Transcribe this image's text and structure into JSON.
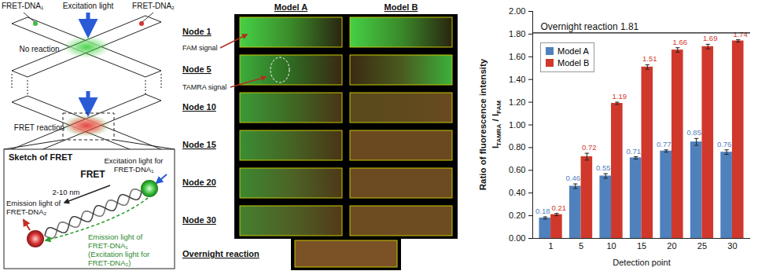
{
  "chart_data": {
    "type": "bar",
    "x_label": "Detection point",
    "y_label": [
      [
        {
          "text": "Ratio of fluorescence intensity"
        }
      ],
      [
        {
          "text": "I"
        },
        {
          "text": "TAMRA",
          "sub": true
        },
        {
          "text": " / "
        },
        {
          "text": "I"
        },
        {
          "text": "FAM",
          "sub": true
        }
      ]
    ],
    "categories": [
      "1",
      "5",
      "10",
      "15",
      "20",
      "25",
      "30"
    ],
    "series": [
      {
        "name": "Model A",
        "color": "#4f81bd",
        "values": [
          0.18,
          0.46,
          0.55,
          0.71,
          0.77,
          0.85,
          0.76
        ],
        "errors": [
          0.01,
          0.02,
          0.02,
          0.01,
          0.01,
          0.03,
          0.02
        ]
      },
      {
        "name": "Model B",
        "color": "#d0382c",
        "values": [
          0.21,
          0.72,
          1.19,
          1.51,
          1.66,
          1.69,
          1.74
        ],
        "errors": [
          0.01,
          0.03,
          0.01,
          0.02,
          0.02,
          0.02,
          0.01
        ]
      }
    ],
    "ylim": [
      0,
      2
    ],
    "yticks": [
      {
        "value": 0,
        "label": "0.00"
      },
      {
        "value": 0.2,
        "label": "0.20"
      },
      {
        "value": 0.4,
        "label": "0.40"
      },
      {
        "value": 0.6,
        "label": "0.60"
      },
      {
        "value": 0.8,
        "label": "0.80"
      },
      {
        "value": 1,
        "label": "1.00"
      },
      {
        "value": 1.2,
        "label": "1.20"
      },
      {
        "value": 1.4,
        "label": "1.40"
      },
      {
        "value": 1.6,
        "label": "1.60"
      },
      {
        "value": 1.8,
        "label": "1.80"
      },
      {
        "value": 2,
        "label": "2.00"
      }
    ],
    "grid": false,
    "legend": "top-left",
    "data_labels": true,
    "annotations": [
      {
        "text": "Overnight reaction 1.81",
        "y": 1.81
      }
    ]
  },
  "diagram": {
    "fret_dna1": "FRET-DNA₁",
    "fret_dna2": "FRET-DNA₂",
    "excitation": "Excitation light",
    "no_reaction": "No reaction",
    "fret_reaction": "FRET reaction",
    "sketch_title": "Sketch of FRET",
    "excitation_for_1": [
      "Excitation light for",
      "FRET-DNA₁"
    ],
    "fret": "FRET",
    "distance": "2-10 nm",
    "emission_2": [
      "Emission light of",
      "FRET-DNA₂"
    ],
    "emission_1": [
      "Emission light of",
      "FRET-DNA₁",
      "(Excitation light for",
      "FRET-DNA₂)"
    ]
  },
  "micrographs": {
    "columns": [
      "Model A",
      "Model B"
    ],
    "signal_labels": [
      "FAM signal",
      "TAMRA signal"
    ],
    "rows": [
      {
        "label": "Node 1",
        "cells": [
          {
            "colors": [
              "#46d046",
              "#3a8a2a",
              "#2a2410"
            ]
          },
          {
            "colors": [
              "#46d046",
              "#3a8a2a",
              "#2a2410"
            ]
          }
        ]
      },
      {
        "label": "Node 5",
        "cells": [
          {
            "colors": [
              "#3cae3c",
              "#2f6a22",
              "#3a2812"
            ]
          },
          {
            "colors": [
              "#3a2a12",
              "#4a5a1e",
              "#3cb03c"
            ]
          }
        ]
      },
      {
        "label": "Node 10",
        "cells": [
          {
            "colors": [
              "#3a9a38",
              "#3f6a24",
              "#4a3416"
            ]
          },
          {
            "colors": [
              "#5a4a1c",
              "#5e4a1e",
              "#6a4a20"
            ]
          }
        ]
      },
      {
        "label": "Node 15",
        "cells": [
          {
            "colors": [
              "#3a8e34",
              "#456424",
              "#4a3416"
            ]
          },
          {
            "colors": [
              "#6a4820",
              "#6a4820"
            ]
          }
        ]
      },
      {
        "label": "Node 20",
        "cells": [
          {
            "colors": [
              "#3c8830",
              "#4c6426",
              "#4e3818"
            ]
          },
          {
            "colors": [
              "#6c4a22",
              "#6c4a22"
            ]
          }
        ]
      },
      {
        "label": "Node 30",
        "cells": [
          {
            "colors": [
              "#44802e",
              "#4e6026",
              "#523a18"
            ]
          },
          {
            "colors": [
              "#6e4c22",
              "#6e4c22"
            ]
          }
        ]
      }
    ],
    "overnight": {
      "label": "Overnight reaction",
      "colors": [
        "#7a5226",
        "#7a5226"
      ]
    }
  }
}
